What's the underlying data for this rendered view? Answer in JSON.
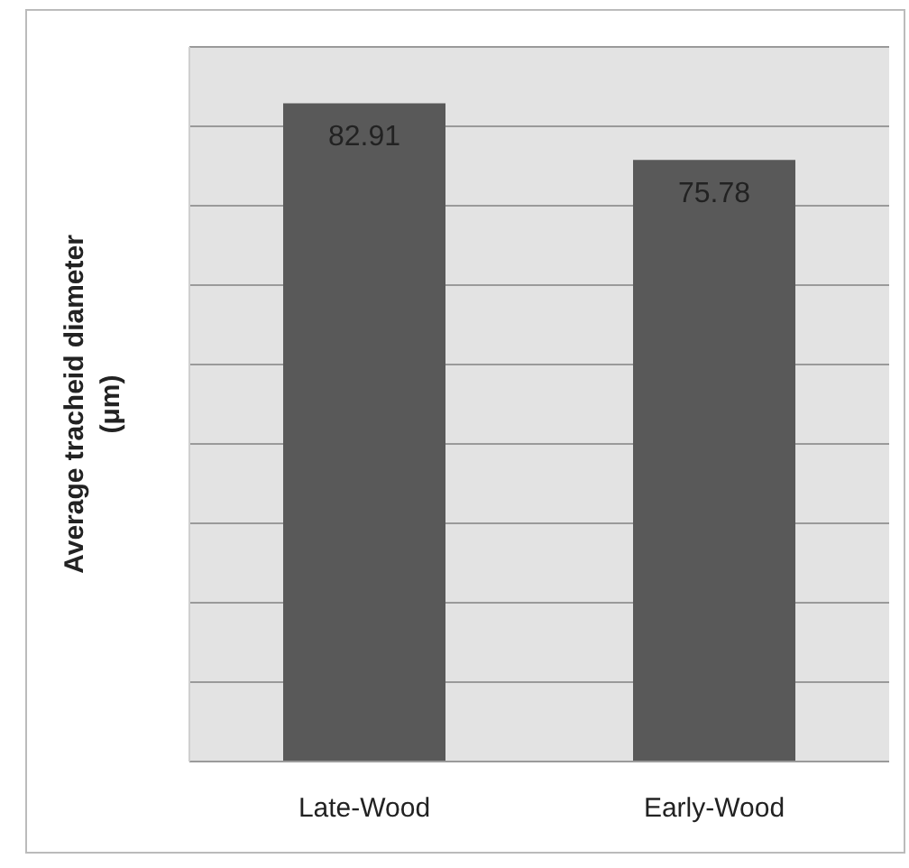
{
  "chart_data": {
    "type": "bar",
    "ylabel": "Average tracheid diameter\n(μm)",
    "categories": [
      "Late-Wood",
      "Early-Wood"
    ],
    "values": [
      82.91,
      75.78
    ],
    "color": "#595959",
    "ylim": [
      0,
      90
    ],
    "yticks": [
      {
        "value": 0,
        "label": null
      },
      {
        "value": 10,
        "label": null
      },
      {
        "value": 20,
        "label": null
      },
      {
        "value": 30,
        "label": null
      },
      {
        "value": 40,
        "label": null
      },
      {
        "value": 50,
        "label": null
      },
      {
        "value": 60,
        "label": null
      },
      {
        "value": 70,
        "label": null
      },
      {
        "value": 80,
        "label": null
      },
      {
        "value": 90,
        "label": null
      }
    ],
    "tick_labels": "x",
    "grid": "y",
    "data_labels": true
  }
}
